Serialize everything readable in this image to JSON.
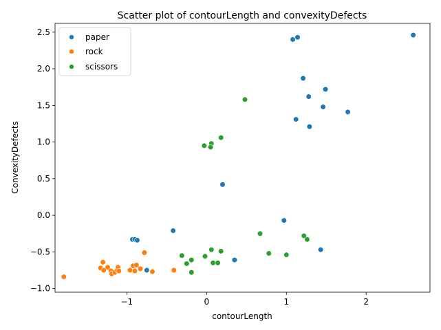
{
  "chart_data": {
    "type": "scatter",
    "title": "Scatter plot of contourLength and convexityDefects",
    "xlabel": "contourLength",
    "ylabel": "ConvexityDefects",
    "xlim": [
      -1.9,
      2.8
    ],
    "ylim": [
      -1.05,
      2.62
    ],
    "xticks": [
      -1,
      0,
      1,
      2
    ],
    "xtick_labels": [
      "−1",
      "0",
      "1",
      "2"
    ],
    "yticks": [
      -1.0,
      -0.5,
      0.0,
      0.5,
      1.0,
      1.5,
      2.0,
      2.5
    ],
    "ytick_labels": [
      "−1.0",
      "−0.5",
      "0.0",
      "0.5",
      "1.0",
      "1.5",
      "2.0",
      "2.5"
    ],
    "grid": false,
    "legend_position": "top-left",
    "series": [
      {
        "name": "paper",
        "color": "#1f77b4",
        "points": [
          [
            2.59,
            2.46
          ],
          [
            1.14,
            2.43
          ],
          [
            1.08,
            2.4
          ],
          [
            1.21,
            1.87
          ],
          [
            1.49,
            1.72
          ],
          [
            1.28,
            1.62
          ],
          [
            1.46,
            1.48
          ],
          [
            1.77,
            1.41
          ],
          [
            1.12,
            1.31
          ],
          [
            1.29,
            1.21
          ],
          [
            0.2,
            0.42
          ],
          [
            0.97,
            -0.07
          ],
          [
            -0.42,
            -0.21
          ],
          [
            -0.93,
            -0.33
          ],
          [
            -0.9,
            -0.33
          ],
          [
            -0.87,
            -0.34
          ],
          [
            1.43,
            -0.47
          ],
          [
            0.35,
            -0.61
          ],
          [
            -0.75,
            -0.75
          ]
        ]
      },
      {
        "name": "rock",
        "color": "#ff7f0e",
        "points": [
          [
            -1.79,
            -0.84
          ],
          [
            -1.3,
            -0.64
          ],
          [
            -1.33,
            -0.72
          ],
          [
            -1.29,
            -0.75
          ],
          [
            -1.24,
            -0.71
          ],
          [
            -1.2,
            -0.76
          ],
          [
            -1.19,
            -0.8
          ],
          [
            -1.15,
            -0.78
          ],
          [
            -1.12,
            -0.75
          ],
          [
            -1.11,
            -0.71
          ],
          [
            -1.1,
            -0.76
          ],
          [
            -0.96,
            -0.75
          ],
          [
            -0.92,
            -0.69
          ],
          [
            -0.9,
            -0.76
          ],
          [
            -0.88,
            -0.68
          ],
          [
            -0.83,
            -0.73
          ],
          [
            -0.78,
            -0.51
          ],
          [
            -0.68,
            -0.77
          ],
          [
            -0.41,
            -0.75
          ]
        ]
      },
      {
        "name": "scissors",
        "color": "#2ca02c",
        "points": [
          [
            0.48,
            1.58
          ],
          [
            0.18,
            1.06
          ],
          [
            0.06,
            0.98
          ],
          [
            -0.03,
            0.95
          ],
          [
            0.05,
            0.93
          ],
          [
            0.67,
            -0.25
          ],
          [
            1.22,
            -0.28
          ],
          [
            1.26,
            -0.33
          ],
          [
            0.06,
            -0.47
          ],
          [
            0.18,
            -0.49
          ],
          [
            0.78,
            -0.52
          ],
          [
            1.0,
            -0.54
          ],
          [
            -0.31,
            -0.55
          ],
          [
            -0.02,
            -0.56
          ],
          [
            -0.19,
            -0.61
          ],
          [
            0.08,
            -0.65
          ],
          [
            0.14,
            -0.65
          ],
          [
            -0.25,
            -0.66
          ],
          [
            -0.19,
            -0.78
          ]
        ]
      }
    ]
  }
}
